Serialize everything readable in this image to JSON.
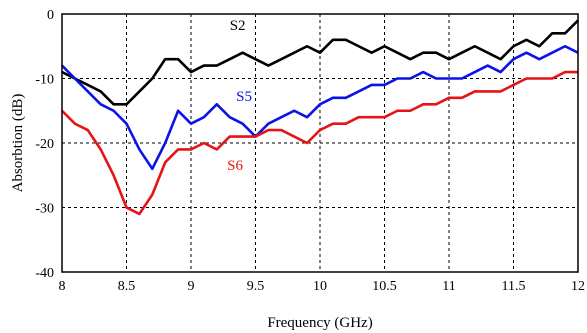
{
  "chart_data": {
    "type": "line",
    "xlabel": "Frequency (GHz)",
    "ylabel": "Absorbtion (dB)",
    "xlim": [
      8,
      12
    ],
    "ylim": [
      -40,
      0
    ],
    "xticks": [
      "8",
      "8.5",
      "9",
      "9.5",
      "10",
      "10.5",
      "11",
      "11.5",
      "12"
    ],
    "yticks": [
      "0",
      "-10",
      "-20",
      "-30",
      "-40"
    ],
    "grid": true,
    "series": [
      {
        "name": "S2",
        "color": "#000000",
        "x": [
          8.0,
          8.1,
          8.2,
          8.3,
          8.4,
          8.5,
          8.6,
          8.7,
          8.8,
          8.9,
          9.0,
          9.1,
          9.2,
          9.3,
          9.4,
          9.5,
          9.6,
          9.7,
          9.8,
          9.9,
          10.0,
          10.1,
          10.2,
          10.3,
          10.4,
          10.5,
          10.6,
          10.7,
          10.8,
          10.9,
          11.0,
          11.1,
          11.2,
          11.3,
          11.4,
          11.5,
          11.6,
          11.7,
          11.8,
          11.9,
          12.0
        ],
        "y": [
          -9,
          -10,
          -11,
          -12,
          -14,
          -14,
          -12,
          -10,
          -7,
          -7,
          -9,
          -8,
          -8,
          -7,
          -6,
          -7,
          -8,
          -7,
          -6,
          -5,
          -6,
          -4,
          -4,
          -5,
          -6,
          -5,
          -6,
          -7,
          -6,
          -6,
          -7,
          -6,
          -5,
          -6,
          -7,
          -5,
          -4,
          -5,
          -3,
          -3,
          -1
        ]
      },
      {
        "name": "S5",
        "color": "#0a14e6",
        "x": [
          8.0,
          8.1,
          8.2,
          8.3,
          8.4,
          8.5,
          8.6,
          8.7,
          8.8,
          8.9,
          9.0,
          9.1,
          9.2,
          9.3,
          9.4,
          9.5,
          9.6,
          9.7,
          9.8,
          9.9,
          10.0,
          10.1,
          10.2,
          10.3,
          10.4,
          10.5,
          10.6,
          10.7,
          10.8,
          10.9,
          11.0,
          11.1,
          11.2,
          11.3,
          11.4,
          11.5,
          11.6,
          11.7,
          11.8,
          11.9,
          12.0
        ],
        "y": [
          -8,
          -10,
          -12,
          -14,
          -15,
          -17,
          -21,
          -24,
          -20,
          -15,
          -17,
          -16,
          -14,
          -16,
          -17,
          -19,
          -17,
          -16,
          -15,
          -16,
          -14,
          -13,
          -13,
          -12,
          -11,
          -11,
          -10,
          -10,
          -9,
          -10,
          -10,
          -10,
          -9,
          -8,
          -9,
          -7,
          -6,
          -7,
          -6,
          -5,
          -6
        ]
      },
      {
        "name": "S6",
        "color": "#e61414",
        "x": [
          8.0,
          8.1,
          8.2,
          8.3,
          8.4,
          8.5,
          8.6,
          8.7,
          8.8,
          8.9,
          9.0,
          9.1,
          9.2,
          9.3,
          9.4,
          9.5,
          9.6,
          9.7,
          9.8,
          9.9,
          10.0,
          10.1,
          10.2,
          10.3,
          10.4,
          10.5,
          10.6,
          10.7,
          10.8,
          10.9,
          11.0,
          11.1,
          11.2,
          11.3,
          11.4,
          11.5,
          11.6,
          11.7,
          11.8,
          11.9,
          12.0
        ],
        "y": [
          -15,
          -17,
          -18,
          -21,
          -25,
          -30,
          -31,
          -28,
          -23,
          -21,
          -21,
          -20,
          -21,
          -19,
          -19,
          -19,
          -18,
          -18,
          -19,
          -20,
          -18,
          -17,
          -17,
          -16,
          -16,
          -16,
          -15,
          -15,
          -14,
          -14,
          -13,
          -13,
          -12,
          -12,
          -12,
          -11,
          -10,
          -10,
          -10,
          -9,
          -9
        ]
      }
    ]
  }
}
